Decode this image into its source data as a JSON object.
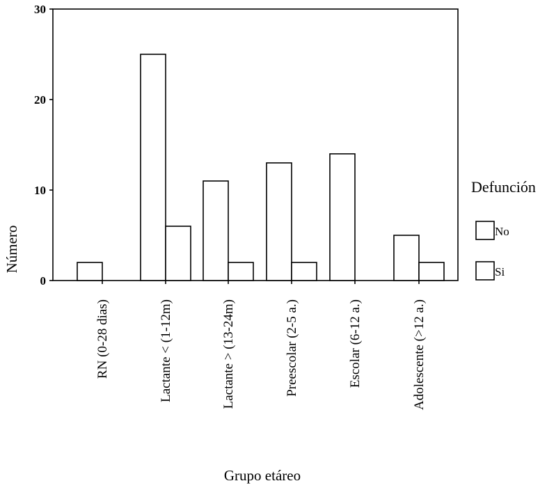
{
  "chart_data": {
    "type": "bar",
    "title": "",
    "xlabel": "Grupo etáreo",
    "ylabel": "Número",
    "ylim": [
      0,
      30
    ],
    "yticks": [
      0,
      10,
      20,
      30
    ],
    "grid": false,
    "legend_title": "Defunción",
    "legend_position": "right",
    "categories": [
      "RN (0-28 dias)",
      "Lactante < (1-12m)",
      "Lactante > (13-24m)",
      "Preescolar (2-5 a.)",
      "Escolar (6-12 a.)",
      "Adolescente (>12 a.)"
    ],
    "series": [
      {
        "name": "No",
        "values": [
          2,
          25,
          11,
          13,
          14,
          5
        ]
      },
      {
        "name": "Si",
        "values": [
          0,
          6,
          2,
          2,
          0,
          2
        ]
      }
    ]
  }
}
